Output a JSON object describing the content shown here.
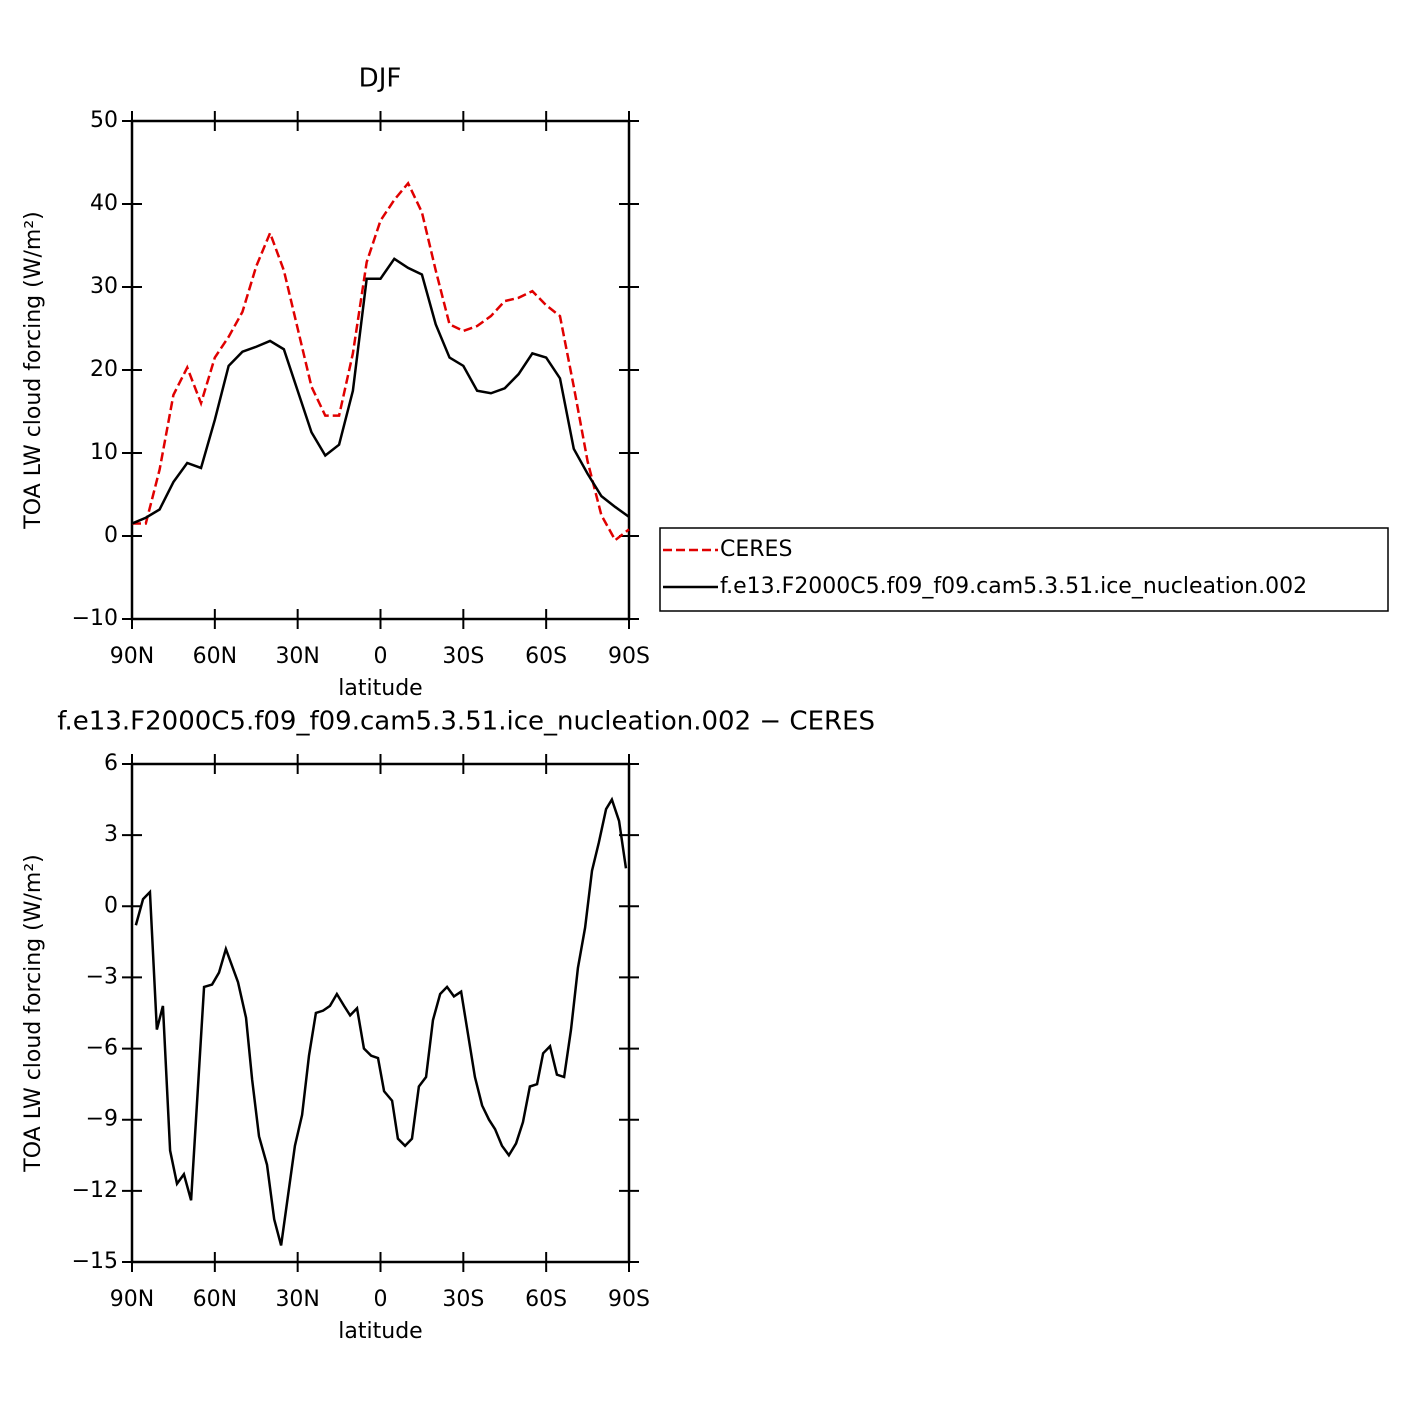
{
  "chart_data": [
    {
      "type": "line",
      "title": "DJF",
      "xlabel": "latitude",
      "ylabel": "TOA LW cloud forcing (W/m²)",
      "x": [
        90,
        85,
        80,
        75,
        70,
        65,
        60,
        55,
        50,
        45,
        40,
        35,
        30,
        25,
        20,
        15,
        10,
        5,
        0,
        -5,
        -10,
        -15,
        -20,
        -25,
        -30,
        -35,
        -40,
        -45,
        -50,
        -55,
        -60,
        -65,
        -70,
        -75,
        -80,
        -85,
        -90
      ],
      "xlim": [
        90,
        -90
      ],
      "xticks": [
        {
          "value": 90,
          "label": "90N"
        },
        {
          "value": 60,
          "label": "60N"
        },
        {
          "value": 30,
          "label": "30N"
        },
        0,
        {
          "value": -30,
          "label": "30S"
        },
        {
          "value": -60,
          "label": "60S"
        },
        {
          "value": -90,
          "label": "90S"
        }
      ],
      "ylim": [
        -10,
        50
      ],
      "yticks": [
        {
          "value": -10,
          "label": "−10"
        },
        0,
        10,
        20,
        30,
        40,
        50
      ],
      "legend": "right",
      "series": [
        {
          "name": "CERES",
          "color": "#e00000",
          "style": "dashed",
          "values": [
            1.5,
            1.5,
            8,
            17,
            20.3,
            16,
            21.5,
            24,
            27,
            32.5,
            36.5,
            32,
            25,
            18,
            14.5,
            14.5,
            22,
            33,
            38,
            40.5,
            42.5,
            39,
            32,
            25.5,
            24.7,
            25.3,
            26.5,
            28.3,
            28.7,
            29.5,
            27.8,
            26.5,
            18,
            9,
            2.5,
            -0.5,
            0.8
          ]
        },
        {
          "name": "f.e13.F2000C5.f09_f09.cam5.3.51.ice_nucleation.002",
          "color": "#000000",
          "style": "solid",
          "values": [
            1.5,
            2.2,
            3.2,
            6.5,
            8.8,
            8.2,
            14,
            20.5,
            22.2,
            22.8,
            23.5,
            22.5,
            17.5,
            12.5,
            9.7,
            11,
            17.5,
            31,
            31,
            33.4,
            32.3,
            31.5,
            25.5,
            21.5,
            20.5,
            17.5,
            17.2,
            17.8,
            19.5,
            22,
            21.5,
            19,
            10.5,
            7.5,
            4.8,
            3.5,
            2.3
          ]
        }
      ]
    },
    {
      "type": "line",
      "title": "f.e13.F2000C5.f09_f09.cam5.3.51.ice_nucleation.002 − CERES",
      "xlabel": "latitude",
      "ylabel": "TOA LW cloud forcing (W/m²)",
      "x": [
        88.6,
        86,
        83.5,
        81,
        78.8,
        76.2,
        73.7,
        71.2,
        68.6,
        63.9,
        61,
        58.5,
        56,
        51.6,
        48.7,
        46.5,
        44,
        41.1,
        38.5,
        36,
        31,
        28.4,
        25.9,
        23.4,
        20.8,
        18.3,
        15.8,
        13.2,
        11,
        8.5,
        6,
        3.4,
        0.9,
        -1.3,
        -4.2,
        -6.3,
        -8.9,
        -11.4,
        -13.9,
        -16.5,
        -19,
        -21.6,
        -24.1,
        -26.6,
        -29.2,
        -31.7,
        -34.2,
        -36.8,
        -39.3,
        -41.5,
        -44,
        -46.5,
        -49.1,
        -51.6,
        -54.1,
        -56.7,
        -58.9,
        -61.4,
        -63.9,
        -66.5,
        -69,
        -71.5,
        -74.1,
        -76.6,
        -79.1,
        -81.7,
        -83.8,
        -86.4,
        -88.9
      ],
      "xlim": [
        90,
        -90
      ],
      "xticks": [
        {
          "value": 90,
          "label": "90N"
        },
        {
          "value": 60,
          "label": "60N"
        },
        {
          "value": 30,
          "label": "30N"
        },
        0,
        {
          "value": -30,
          "label": "30S"
        },
        {
          "value": -60,
          "label": "60S"
        },
        {
          "value": -90,
          "label": "90S"
        }
      ],
      "ylim": [
        -15,
        6
      ],
      "yticks": [
        {
          "value": -15,
          "label": "−15"
        },
        {
          "value": -12,
          "label": "−12"
        },
        {
          "value": -9,
          "label": "−9"
        },
        {
          "value": -6,
          "label": "−6"
        },
        {
          "value": -3,
          "label": "−3"
        },
        0,
        3,
        6
      ],
      "series": [
        {
          "color": "#000000",
          "style": "solid",
          "values": [
            -0.8,
            0.3,
            0.6,
            -5.2,
            -4.2,
            -10.3,
            -11.7,
            -11.3,
            -12.4,
            -3.4,
            -3.3,
            -2.8,
            -1.8,
            -3.2,
            -4.7,
            -7.3,
            -9.7,
            -10.9,
            -13.2,
            -14.3,
            -10.1,
            -8.8,
            -6.3,
            -4.5,
            -4.4,
            -4.2,
            -3.7,
            -4.2,
            -4.6,
            -4.3,
            -6.0,
            -6.3,
            -6.4,
            -7.8,
            -8.2,
            -9.8,
            -10.1,
            -9.8,
            -7.6,
            -7.2,
            -4.8,
            -3.7,
            -3.4,
            -3.8,
            -3.6,
            -5.4,
            -7.2,
            -8.4,
            -9.0,
            -9.4,
            -10.1,
            -10.5,
            -10.0,
            -9.1,
            -7.6,
            -7.5,
            -6.2,
            -5.9,
            -7.1,
            -7.2,
            -5.2,
            -2.6,
            -0.9,
            1.5,
            2.7,
            4.1,
            4.5,
            3.6,
            1.6
          ]
        }
      ]
    }
  ]
}
